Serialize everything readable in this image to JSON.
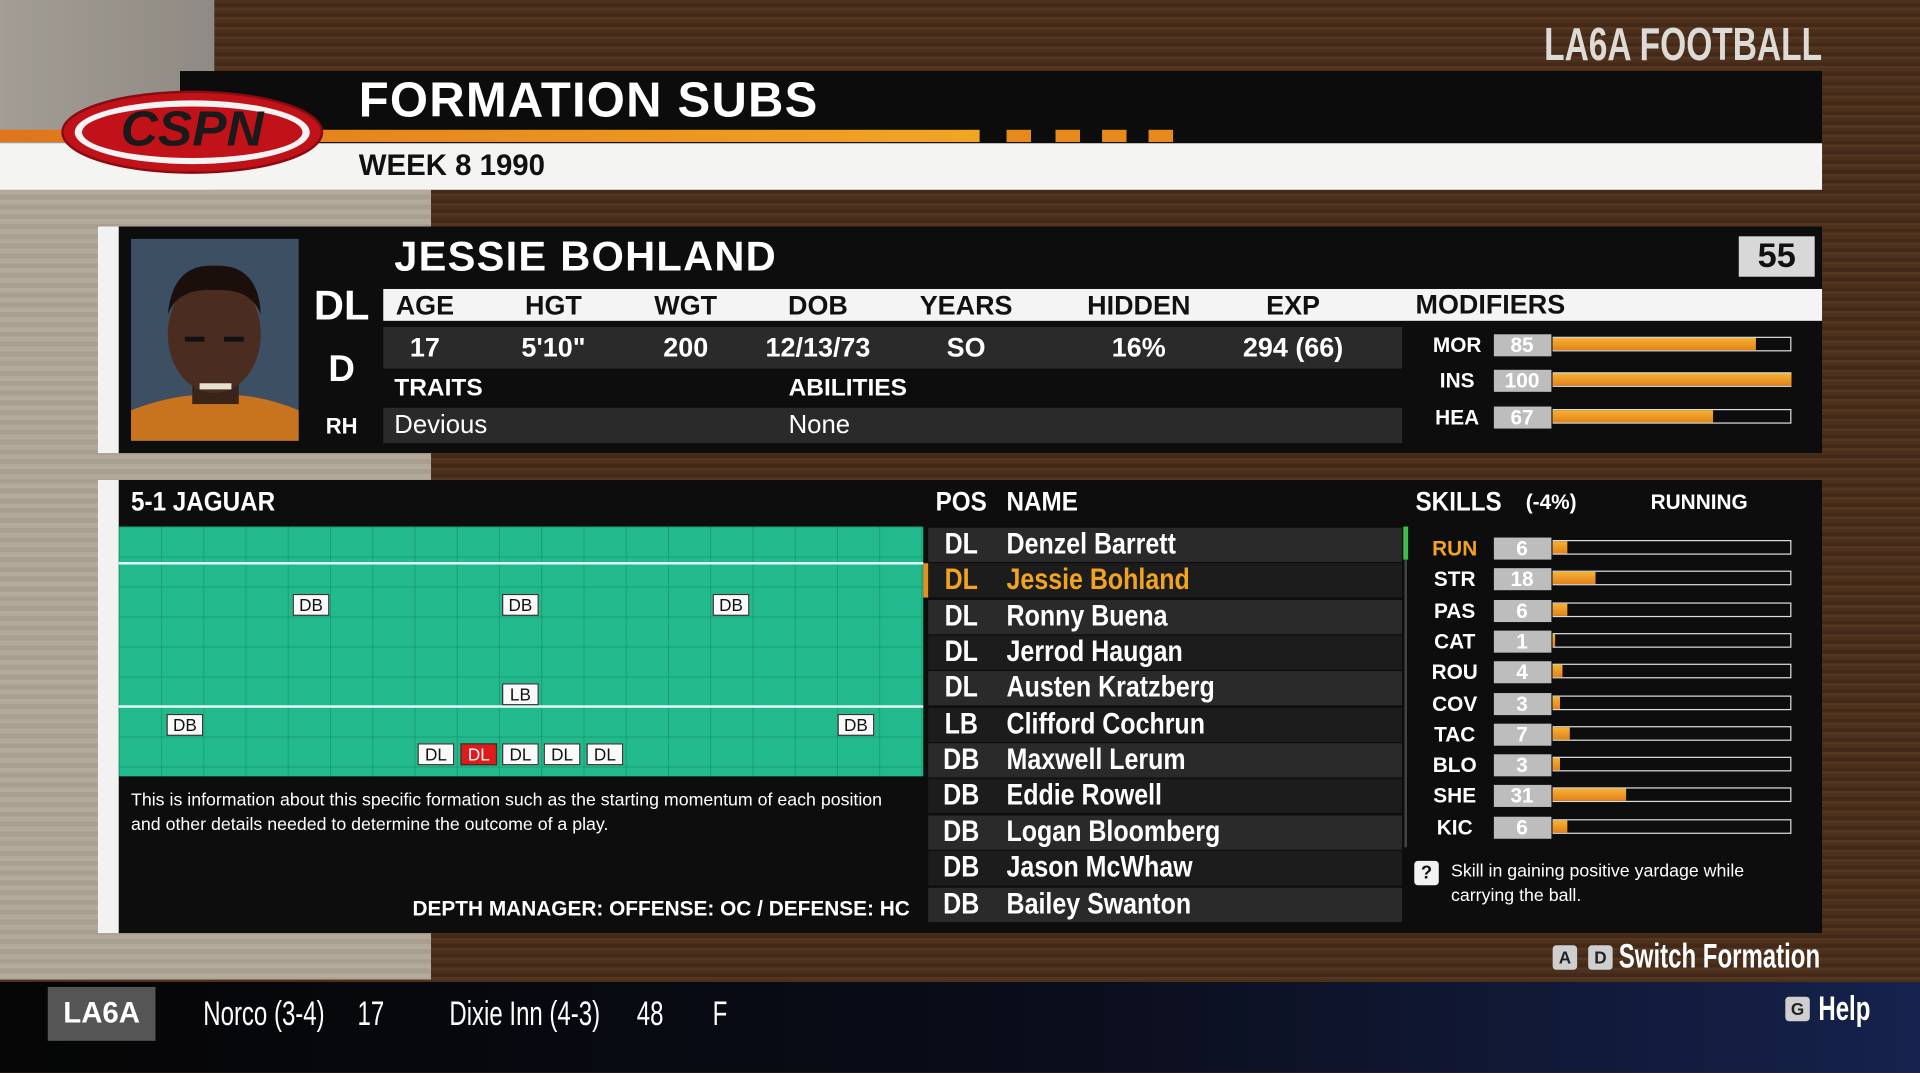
{
  "header": {
    "brand": "LA6A FOOTBALL",
    "logo": "CSPN",
    "title": "FORMATION SUBS",
    "subtitle": "WEEK 8 1990"
  },
  "player": {
    "name": "JESSIE BOHLAND",
    "number": 55,
    "position": "DL",
    "side": "D",
    "hand": "RH",
    "stats": [
      {
        "label": "AGE",
        "value": 17
      },
      {
        "label": "HGT",
        "value": "5'10\""
      },
      {
        "label": "WGT",
        "value": 200
      },
      {
        "label": "DOB",
        "value": "12/13/73"
      },
      {
        "label": "YEARS",
        "value": "SO"
      },
      {
        "label": "HIDDEN",
        "value": "16%"
      },
      {
        "label": "EXP",
        "value": "294 (66)"
      }
    ],
    "traits_label": "TRAITS",
    "traits": "Devious",
    "abilities_label": "ABILITIES",
    "abilities": "None",
    "modifiers_label": "MODIFIERS",
    "modifiers": [
      {
        "label": "MOR",
        "value": 85
      },
      {
        "label": "INS",
        "value": 100
      },
      {
        "label": "HEA",
        "value": 67
      }
    ]
  },
  "formation": {
    "name": "5-1 JAGUAR",
    "markers": [
      "DB",
      "DB",
      "DB",
      "LB",
      "DB",
      "DB",
      "DL",
      "DL",
      "DL",
      "DL",
      "DL"
    ],
    "description": "This is information about this specific formation such as the starting momentum of each position and other details needed to determine the outcome of a play.",
    "depth_manager": "DEPTH MANAGER: OFFENSE: OC / DEFENSE: HC"
  },
  "roster": {
    "headers": [
      "POS",
      "NAME"
    ],
    "rows": [
      [
        "DL",
        "Denzel Barrett"
      ],
      [
        "DL",
        "Jessie Bohland"
      ],
      [
        "DL",
        "Ronny Buena"
      ],
      [
        "DL",
        "Jerrod Haugan"
      ],
      [
        "DL",
        "Austen Kratzberg"
      ],
      [
        "LB",
        "Clifford Cochrun"
      ],
      [
        "DB",
        "Maxwell Lerum"
      ],
      [
        "DB",
        "Eddie Rowell"
      ],
      [
        "DB",
        "Logan Bloomberg"
      ],
      [
        "DB",
        "Jason McWhaw"
      ],
      [
        "DB",
        "Bailey Swanton"
      ]
    ]
  },
  "skills": {
    "title": "SKILLS",
    "modifier": "(-4%)",
    "category": "RUNNING",
    "items": [
      {
        "label": "RUN",
        "value": 6
      },
      {
        "label": "STR",
        "value": 18
      },
      {
        "label": "PAS",
        "value": 6
      },
      {
        "label": "CAT",
        "value": 1
      },
      {
        "label": "ROU",
        "value": 4
      },
      {
        "label": "COV",
        "value": 3
      },
      {
        "label": "TAC",
        "value": 7
      },
      {
        "label": "BLO",
        "value": 3
      },
      {
        "label": "SHE",
        "value": 31
      },
      {
        "label": "KIC",
        "value": 6
      }
    ],
    "help_icon": "?",
    "help": "Skill in gaining positive yardage while carrying the ball."
  },
  "controls": {
    "switch_keys": [
      "A",
      "D"
    ],
    "switch_label": "Switch Formation",
    "help_key": "G",
    "help_label": "Help"
  },
  "footer": {
    "league": "LA6A",
    "away": "Norco (3-4)",
    "away_score": 17,
    "home": "Dixie Inn (4-3)",
    "home_score": 48,
    "status": "F"
  }
}
